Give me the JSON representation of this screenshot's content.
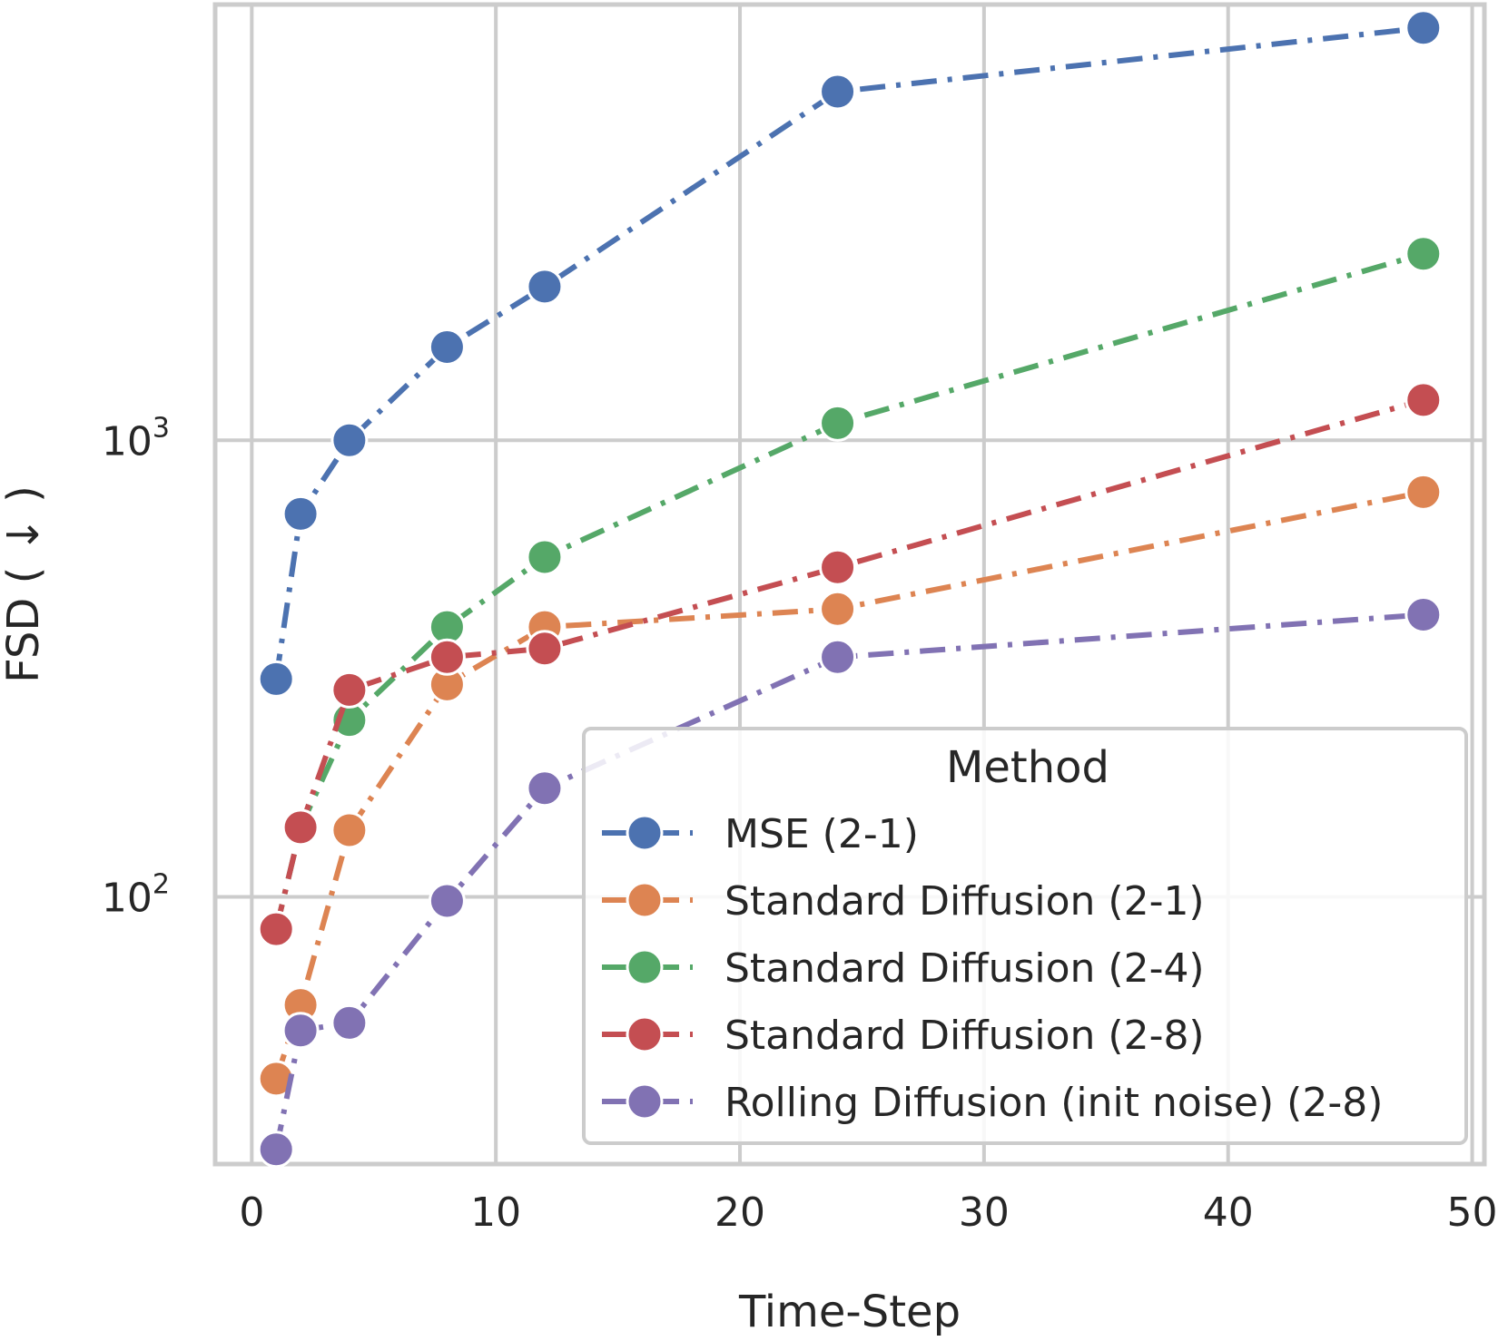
{
  "chart_data": {
    "type": "line",
    "xlabel": "Time-Step",
    "ylabel": "FSD ( ↓ )",
    "xlim": [
      -1.5,
      50.5
    ],
    "ylim": [
      26,
      9000
    ],
    "yscale": "log",
    "grid": true,
    "x_ticks": [
      0,
      10,
      20,
      30,
      40,
      50
    ],
    "y_ticks": [
      {
        "value": 100,
        "base": "10",
        "exp": "2"
      },
      {
        "value": 1000,
        "base": "10",
        "exp": "3"
      }
    ],
    "legend": {
      "title": "Method",
      "placement": "lower-right"
    },
    "x": [
      1,
      2,
      4,
      8,
      12,
      24,
      48
    ],
    "series": [
      {
        "name": "MSE (2-1)",
        "color": "#4c72b0",
        "values": [
          300,
          690,
          1000,
          1600,
          2170,
          5800,
          8000
        ]
      },
      {
        "name": "Standard Diffusion (2-1)",
        "color": "#dd8452",
        "values": [
          40,
          58,
          140,
          292,
          390,
          427,
          770
        ]
      },
      {
        "name": "Standard Diffusion (2-4)",
        "color": "#55a868",
        "values": [
          85,
          142,
          244,
          390,
          555,
          1090,
          2560
        ]
      },
      {
        "name": "Standard Diffusion (2-8)",
        "color": "#c44e52",
        "values": [
          85,
          142,
          284,
          335,
          350,
          527,
          1225
        ]
      },
      {
        "name": "Rolling Diffusion (init noise) (2-8)",
        "color": "#8172b3",
        "values": [
          28,
          51,
          53,
          98,
          173,
          335,
          415
        ]
      }
    ]
  }
}
